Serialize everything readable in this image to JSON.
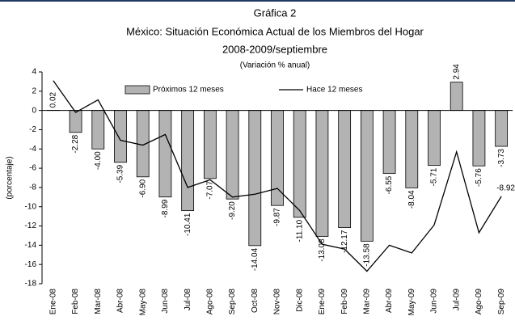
{
  "chart_data": {
    "type": "bar_line",
    "title": "Gráfica 2",
    "subtitle": "México: Situación Económica Actual de los Miembros del Hogar",
    "period": "2008-2009/septiembre",
    "note": "(Variación % anual)",
    "y_label": "(porcentaje)",
    "categories": [
      "Ene-08",
      "Feb-08",
      "Mar-08",
      "Abr-08",
      "May-08",
      "Jun-08",
      "Jul-08",
      "Ago-08",
      "Sep-08",
      "Oct-08",
      "Nov-08",
      "Dic-08",
      "Ene-09",
      "Feb-09",
      "Mar-09",
      "Abr-09",
      "May-09",
      "Jun-09",
      "Jul-09",
      "Ago-09",
      "Sep-09"
    ],
    "series": [
      {
        "name": "Próximos 12 meses",
        "type": "bar",
        "color": "#b3b3b3",
        "values": [
          0.02,
          -2.28,
          -4.0,
          -5.39,
          -6.9,
          -8.99,
          -10.41,
          -7.07,
          -9.2,
          -14.04,
          -9.87,
          -11.1,
          -13.08,
          -12.17,
          -13.58,
          -6.55,
          -8.04,
          -5.71,
          2.94,
          -5.76,
          -3.73
        ],
        "value_labels": [
          "0.02",
          "-2.28",
          "-4.00",
          "-5.39",
          "-6.90",
          "-8.99",
          "-10.41",
          "-7.07",
          "-9.20",
          "-14.04",
          "-9.87",
          "-11.10",
          "-13.08",
          "-12.17",
          "-13.58",
          "-6.55",
          "-8.04",
          "-5.71",
          "2.94",
          "-5.76",
          "-3.73"
        ]
      },
      {
        "name": "Hace 12 meses",
        "type": "line",
        "color": "#000000",
        "values": [
          3.1,
          -0.2,
          1.1,
          -3.1,
          -3.6,
          -2.5,
          -8.0,
          -7.2,
          -9.0,
          -8.7,
          -8.1,
          -10.4,
          -13.9,
          -14.4,
          -16.7,
          -14.0,
          -14.8,
          -11.9,
          -4.3,
          -12.7,
          -8.92
        ]
      }
    ],
    "ylim": [
      -18,
      4
    ],
    "yticks": [
      -18,
      -16,
      -14,
      -12,
      -10,
      -8,
      -6,
      -4,
      -2,
      0,
      2,
      4
    ]
  }
}
